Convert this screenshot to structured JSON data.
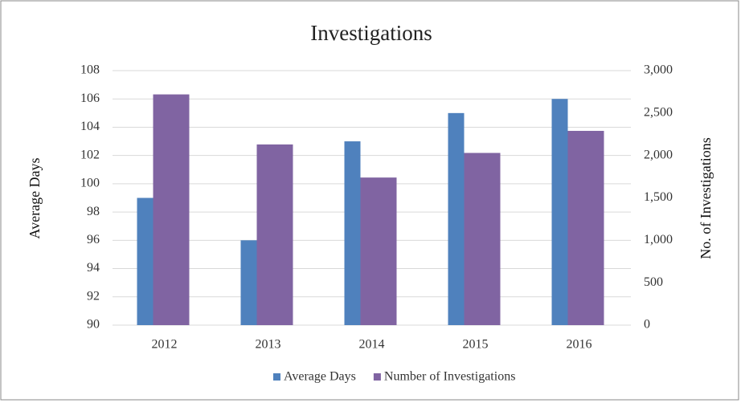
{
  "chart_data": {
    "type": "bar",
    "title": "Investigations",
    "y_label": "Average Days",
    "y2_label": "No. of Investigations",
    "categories": [
      "2012",
      "2013",
      "2014",
      "2015",
      "2016"
    ],
    "series": [
      {
        "name": "Average Days",
        "color": "#4f81bd",
        "values": [
          99,
          96,
          103,
          105,
          106
        ]
      },
      {
        "name": "Number of Investigations",
        "color": "#8064a2",
        "axis": "y2",
        "values": [
          2720,
          2130,
          1740,
          2030,
          2290
        ]
      }
    ],
    "ylim": [
      90,
      108
    ],
    "yticks": [
      90,
      92,
      94,
      96,
      98,
      100,
      102,
      104,
      106,
      108
    ],
    "y2lim": [
      0,
      3000
    ],
    "y2ticks": [
      0,
      500,
      {
        "value": 1000,
        "label": "1,000"
      },
      {
        "value": 1500,
        "label": "1,500"
      },
      {
        "value": 2000,
        "label": "2,000"
      },
      {
        "value": 2500,
        "label": "2,500"
      },
      {
        "value": 3000,
        "label": "3,000"
      }
    ],
    "grid": true,
    "legend": "bottom"
  }
}
